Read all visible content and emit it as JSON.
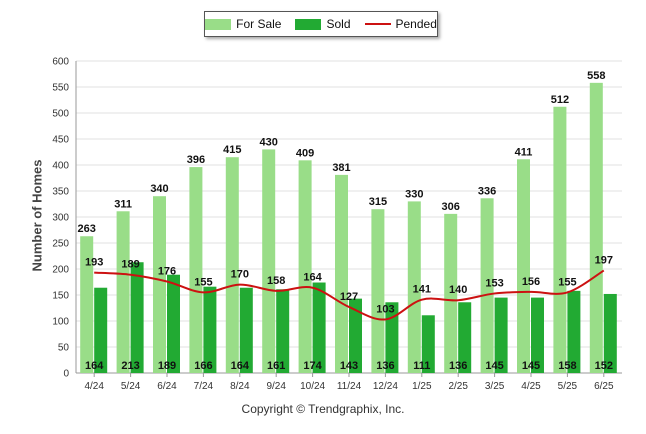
{
  "chart_data": {
    "type": "bar",
    "ylabel": "Number of Homes",
    "ylim": [
      0,
      600
    ],
    "yticks": [
      0,
      50,
      100,
      150,
      200,
      250,
      300,
      350,
      400,
      450,
      500,
      550,
      600
    ],
    "categories": [
      "4/24",
      "5/24",
      "6/24",
      "7/24",
      "8/24",
      "9/24",
      "10/24",
      "11/24",
      "12/24",
      "1/25",
      "2/25",
      "3/25",
      "4/25",
      "5/25",
      "6/25"
    ],
    "series": [
      {
        "name": "For Sale",
        "kind": "bar",
        "color": "#99dd88",
        "values": [
          263,
          311,
          340,
          396,
          415,
          430,
          409,
          381,
          315,
          330,
          306,
          336,
          411,
          512,
          558
        ]
      },
      {
        "name": "Sold",
        "kind": "bar",
        "color": "#22aa33",
        "values": [
          164,
          213,
          189,
          166,
          164,
          161,
          174,
          143,
          136,
          111,
          136,
          145,
          145,
          158,
          152
        ]
      },
      {
        "name": "Pended",
        "kind": "line",
        "color": "#cc1111",
        "values": [
          193,
          189,
          176,
          155,
          170,
          158,
          164,
          127,
          103,
          141,
          140,
          153,
          156,
          155,
          197
        ]
      }
    ],
    "legend_position": "top-center",
    "grid": true
  },
  "footer": {
    "copyright": "Copyright © Trendgraphix, Inc."
  }
}
